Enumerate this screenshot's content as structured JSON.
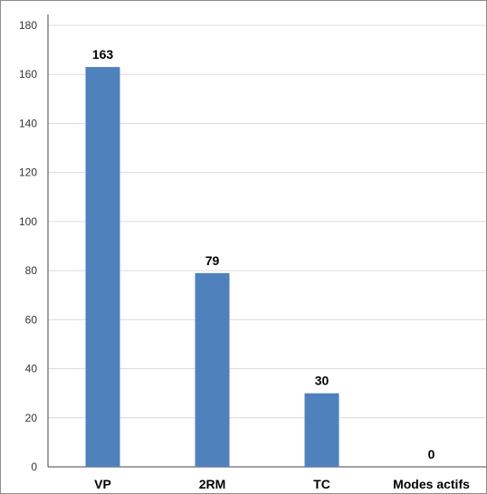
{
  "chart_data": {
    "type": "bar",
    "title": "",
    "xlabel": "",
    "ylabel": "",
    "categories": [
      "VP",
      "2RM",
      "TC",
      "Modes actifs"
    ],
    "values": [
      163,
      79,
      30,
      0
    ],
    "data_labels": [
      "163",
      "79",
      "30",
      "0"
    ],
    "ylim": [
      0,
      180
    ],
    "yticks": [
      0,
      20,
      40,
      60,
      80,
      100,
      120,
      140,
      160,
      180
    ],
    "ytick_labels": [
      "0",
      "20",
      "40",
      "60",
      "80",
      "100",
      "120",
      "140",
      "160",
      "180"
    ],
    "grid": true,
    "legend": "none",
    "bar_color": "#4f81bd"
  }
}
